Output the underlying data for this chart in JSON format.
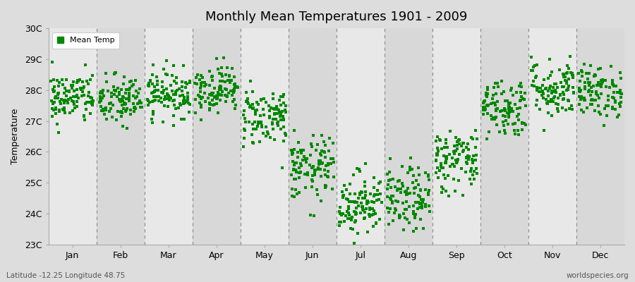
{
  "title": "Monthly Mean Temperatures 1901 - 2009",
  "ylabel": "Temperature",
  "xlabel_labels": [
    "Jan",
    "Feb",
    "Mar",
    "Apr",
    "May",
    "Jun",
    "Jul",
    "Aug",
    "Sep",
    "Oct",
    "Nov",
    "Dec"
  ],
  "ylim": [
    23,
    30
  ],
  "yticks": [
    23,
    24,
    25,
    26,
    27,
    28,
    29,
    30
  ],
  "ytick_labels": [
    "23C",
    "24C",
    "25C",
    "26C",
    "27C",
    "28C",
    "29C",
    "30C"
  ],
  "dot_color": "#008800",
  "bg_color": "#dddddd",
  "plot_bg_color_light": "#e8e8e8",
  "plot_bg_color_dark": "#d8d8d8",
  "legend_label": "Mean Temp",
  "footer_left": "Latitude -12.25 Longitude 48.75",
  "footer_right": "worldspecies.org",
  "seed": 42,
  "monthly_means": [
    27.75,
    27.65,
    27.9,
    28.05,
    27.15,
    25.45,
    24.35,
    24.45,
    25.75,
    27.45,
    28.05,
    27.95
  ],
  "monthly_stds": [
    0.42,
    0.42,
    0.38,
    0.38,
    0.48,
    0.52,
    0.52,
    0.52,
    0.52,
    0.48,
    0.48,
    0.42
  ],
  "n_years": 109,
  "dpi": 100,
  "figsize": [
    9.0,
    4.0
  ]
}
